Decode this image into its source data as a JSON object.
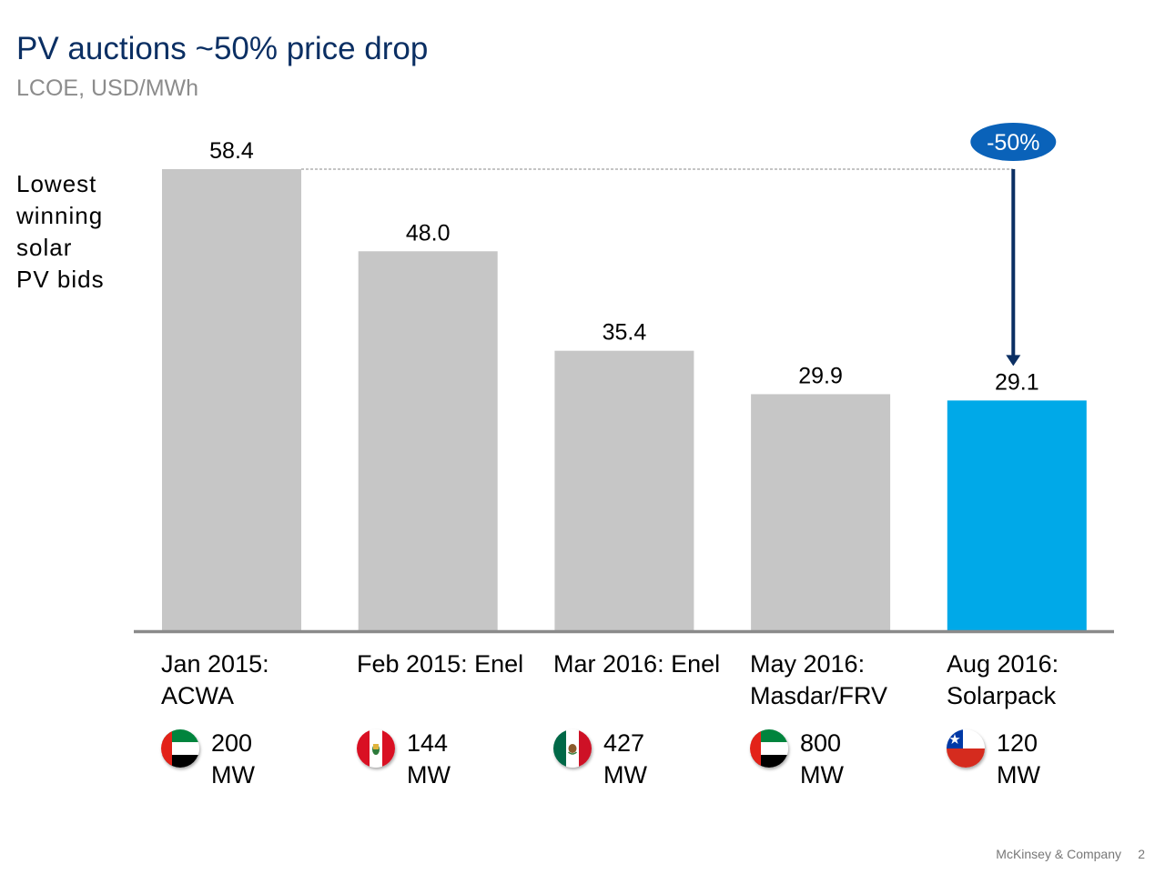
{
  "title": "PV auctions ~50% price drop",
  "subtitle": "LCOE, USD/MWh",
  "side_label": [
    "Lowest",
    "winning",
    "solar",
    "PV bids"
  ],
  "chart_data": {
    "type": "bar",
    "categories": [
      "Jan 2015: ACWA",
      "Feb 2015: Enel",
      "Mar 2016: Enel",
      "May 2016: Masdar/FRV",
      "Aug 2016: Solarpack"
    ],
    "values": [
      58.4,
      48.0,
      35.4,
      29.9,
      29.1
    ],
    "value_labels": [
      "58.4",
      "48.0",
      "35.4",
      "29.9",
      "29.1"
    ],
    "ylim": [
      0,
      58.4
    ],
    "grid": false,
    "bar_colors": [
      "#c6c6c6",
      "#c6c6c6",
      "#c6c6c6",
      "#c6c6c6",
      "#00a9e8"
    ],
    "axis_color": "#8a8a8a",
    "annotation": {
      "label": "-50%",
      "from_index": 0,
      "to_index": 4,
      "badge_color": "#0a62b9",
      "arrow_color": "#0b2f63"
    }
  },
  "categories": [
    {
      "line1": "Jan 2015:",
      "line2": "ACWA",
      "flag": "uae-flag-icon",
      "capacity": "200",
      "unit": "MW"
    },
    {
      "line1": "Feb 2015: Enel",
      "line2": "",
      "flag": "peru-flag-icon",
      "capacity": "144",
      "unit": "MW"
    },
    {
      "line1": "Mar 2016: Enel",
      "line2": "",
      "flag": "mexico-flag-icon",
      "capacity": "427",
      "unit": "MW"
    },
    {
      "line1": "May 2016:",
      "line2": "Masdar/FRV",
      "flag": "uae-flag-icon",
      "capacity": "800",
      "unit": "MW"
    },
    {
      "line1": "Aug 2016:",
      "line2": "Solarpack",
      "flag": "chile-flag-icon",
      "capacity": "120",
      "unit": "MW"
    }
  ],
  "footer": {
    "company": "McKinsey & Company",
    "page": "2"
  }
}
